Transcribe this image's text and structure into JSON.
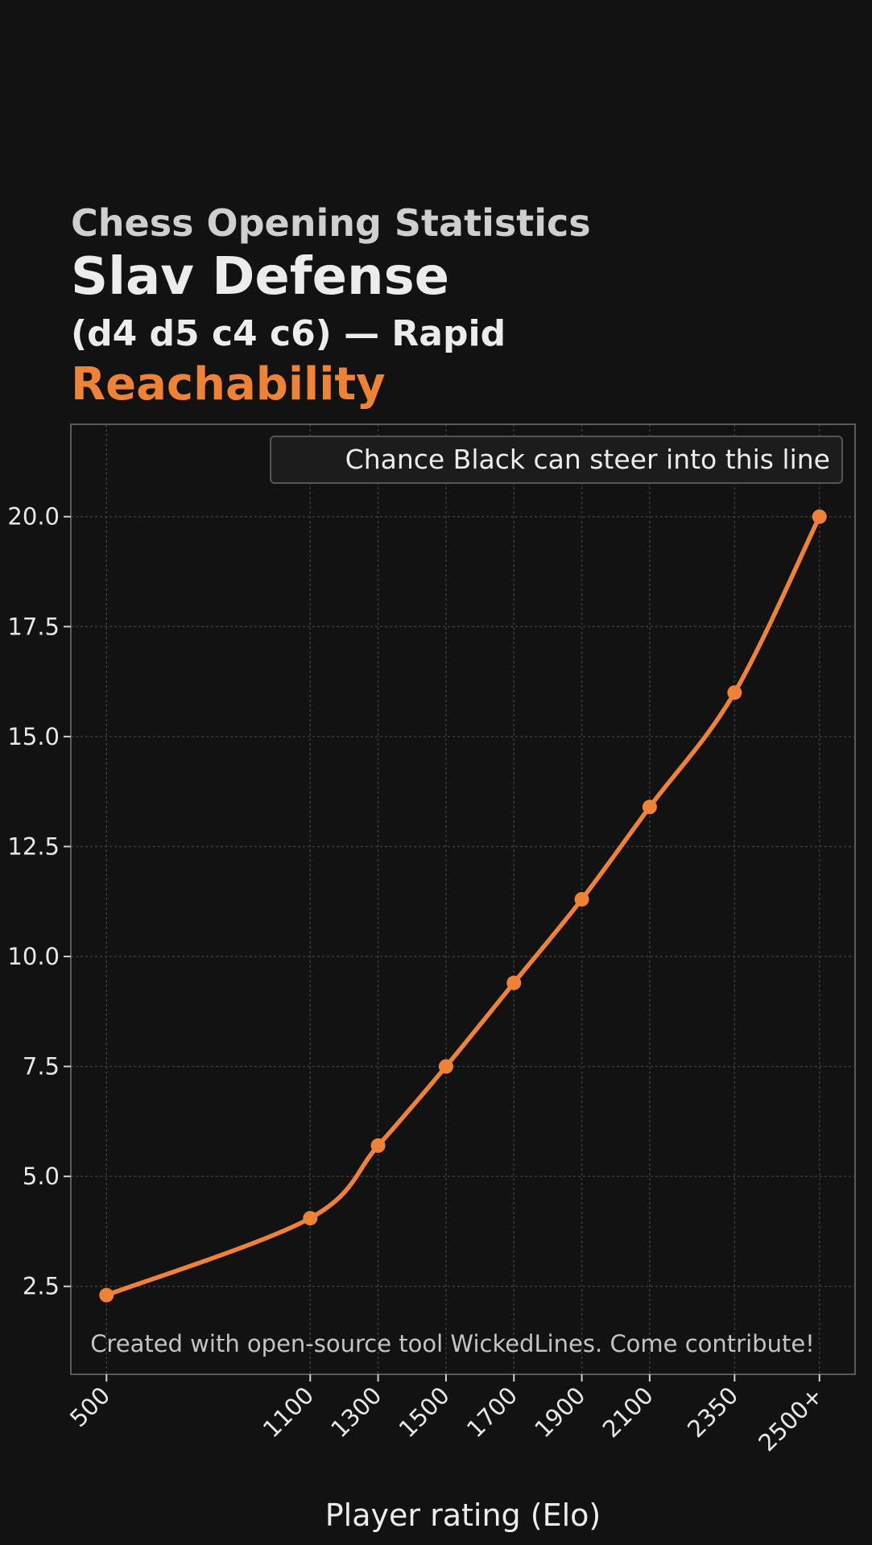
{
  "header": {
    "supertitle": "Chess Opening Statistics",
    "title": "Slav Defense",
    "subtitle": "(d4 d5 c4 c6) — Rapid",
    "metric": "Reachability"
  },
  "colors": {
    "background": "#121212",
    "accent": "#f08236",
    "grid": "#3a3a3a",
    "frame": "#5a5a5a",
    "text": "#ececec"
  },
  "chart_data": {
    "type": "line",
    "title": "Reachability",
    "xlabel": "Player rating (Elo)",
    "ylabel": "",
    "categories": [
      "500",
      "1100",
      "1300",
      "1500",
      "1700",
      "1900",
      "2100",
      "2350",
      "2500+"
    ],
    "x": [
      500,
      1100,
      1300,
      1500,
      1700,
      1900,
      2100,
      2350,
      2600
    ],
    "series": [
      {
        "name": "Chance Black can steer into this line",
        "values": [
          2.3,
          4.05,
          5.7,
          7.5,
          9.4,
          11.3,
          13.4,
          16.0,
          20.0
        ]
      }
    ],
    "xlim": [
      395,
      2705
    ],
    "ylim": [
      0.5,
      22.1
    ],
    "yticks": [
      "2.5",
      "5.0",
      "7.5",
      "10.0",
      "12.5",
      "15.0",
      "17.5",
      "20.0"
    ],
    "ytick_values": [
      2.5,
      5.0,
      7.5,
      10.0,
      12.5,
      15.0,
      17.5,
      20.0
    ],
    "grid": true,
    "legend_position": "top-right",
    "credit": "Created with open-source tool WickedLines. Come contribute!"
  }
}
